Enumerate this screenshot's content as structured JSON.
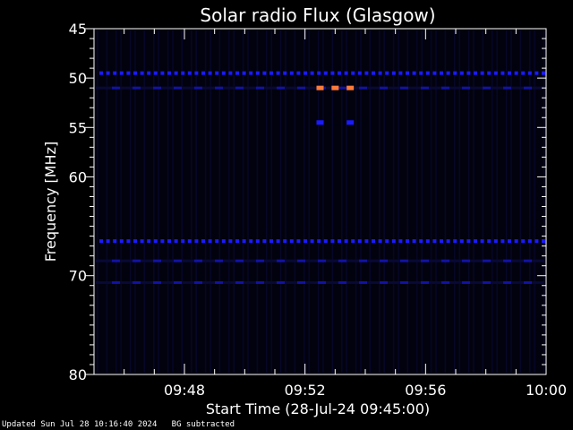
{
  "chart_data": {
    "type": "heatmap",
    "title": "Solar radio Flux (Glasgow)",
    "xlabel": "Start Time (28-Jul-24 09:45:00)",
    "ylabel": "Frequency [MHz]",
    "x_range": [
      "09:45:00",
      "10:00:00"
    ],
    "y_range": [
      45,
      80
    ],
    "y_ticks": [
      45,
      50,
      55,
      60,
      70,
      80
    ],
    "x_ticks": [
      "09:48",
      "09:52",
      "09:56",
      "10:00"
    ],
    "colors": {
      "background": "#000000",
      "axes": "#ffffff",
      "low": "#0a0a3a",
      "mid": "#1a1aff",
      "high": "#ff7a3a"
    },
    "features": [
      {
        "kind": "band",
        "freq": 49.5,
        "intensity": "mid"
      },
      {
        "kind": "band",
        "freq": 51.0,
        "intensity": "low"
      },
      {
        "kind": "band",
        "freq": 66.5,
        "intensity": "mid"
      },
      {
        "kind": "band",
        "freq": 68.5,
        "intensity": "low"
      },
      {
        "kind": "band",
        "freq": 70.7,
        "intensity": "low"
      },
      {
        "kind": "burst",
        "freq": 51.0,
        "time": "09:52:30",
        "intensity": "high"
      },
      {
        "kind": "burst",
        "freq": 51.0,
        "time": "09:53:00",
        "intensity": "high"
      },
      {
        "kind": "burst",
        "freq": 51.0,
        "time": "09:53:30",
        "intensity": "high"
      },
      {
        "kind": "burst",
        "freq": 54.5,
        "time": "09:52:30",
        "intensity": "mid"
      },
      {
        "kind": "burst",
        "freq": 54.5,
        "time": "09:53:30",
        "intensity": "mid"
      }
    ]
  },
  "footer": {
    "updated": "Updated Sun Jul 28 10:16:40 2024",
    "mode": "BG subtracted"
  }
}
